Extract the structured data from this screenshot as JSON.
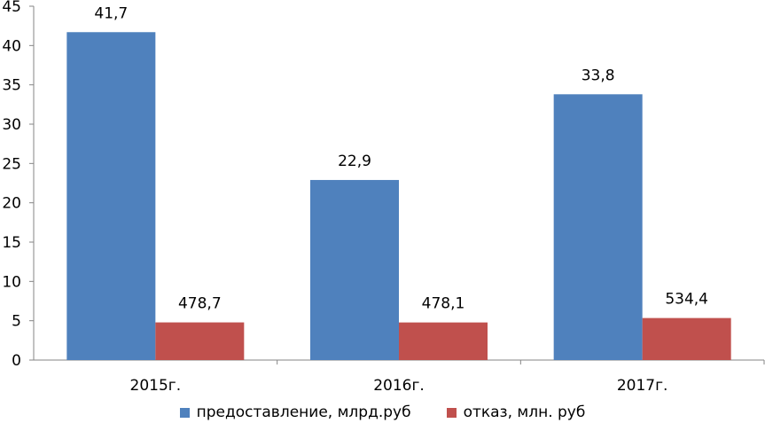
{
  "chart_data": {
    "type": "bar",
    "categories": [
      "2015г.",
      "2016г.",
      "2017г."
    ],
    "series": [
      {
        "name": "предоставление, млрд.руб",
        "values": [
          41.7,
          22.9,
          33.8
        ],
        "labels": [
          "41,7",
          "22,9",
          "33,8"
        ],
        "color": "#4F81BD"
      },
      {
        "name": "отказ, млн. руб",
        "values": [
          4.787,
          4.781,
          5.344
        ],
        "labels": [
          "478,7",
          "478,1",
          "534,4"
        ],
        "color": "#C0504D"
      }
    ],
    "ylim": [
      0,
      45
    ],
    "yticks": [
      "0",
      "5",
      "10",
      "15",
      "20",
      "25",
      "30",
      "35",
      "40",
      "45"
    ],
    "grid": false,
    "legend": "bottom"
  }
}
